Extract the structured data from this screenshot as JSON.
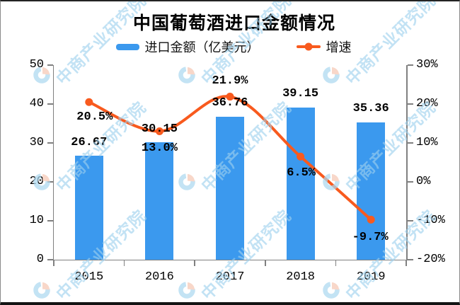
{
  "title": "中国葡萄酒进口金额情况",
  "legend": {
    "bar": "进口金额（亿美元）",
    "line": "增速"
  },
  "watermark": {
    "text": "中商产业研究院"
  },
  "colors": {
    "bar": "#3B99EE",
    "line": "#F85A1E",
    "axis": "#808080",
    "label": "#000000",
    "watermark_text": "#9ED1EE",
    "logo_blue": "#ADD9F0",
    "logo_peach": "#F6C9B5"
  },
  "chart_data": {
    "type": "bar+line combo",
    "title": "中国葡萄酒进口金额情况",
    "categories": [
      "2015",
      "2016",
      "2017",
      "2018",
      "2019"
    ],
    "series": [
      {
        "name": "进口金额（亿美元）",
        "type": "bar",
        "axis": "left",
        "values": [
          26.67,
          30.15,
          36.76,
          39.15,
          35.36
        ],
        "labels": [
          "26.67",
          "30.15",
          "36.76",
          "39.15",
          "35.36"
        ]
      },
      {
        "name": "增速",
        "type": "line",
        "axis": "right",
        "values": [
          20.5,
          13.0,
          21.9,
          6.5,
          -9.7
        ],
        "labels": [
          "20.5%",
          "13.0%",
          "21.9%",
          "6.5%",
          "-9.7%"
        ]
      }
    ],
    "left_axis": {
      "min": 0,
      "max": 50,
      "ticks": [
        "0",
        "10",
        "20",
        "30",
        "40",
        "50"
      ]
    },
    "right_axis": {
      "min": -20,
      "max": 30,
      "ticks": [
        "-20%",
        "-10%",
        "0%",
        "10%",
        "20%",
        "30%"
      ]
    },
    "grid": false,
    "legend_position": "top"
  }
}
